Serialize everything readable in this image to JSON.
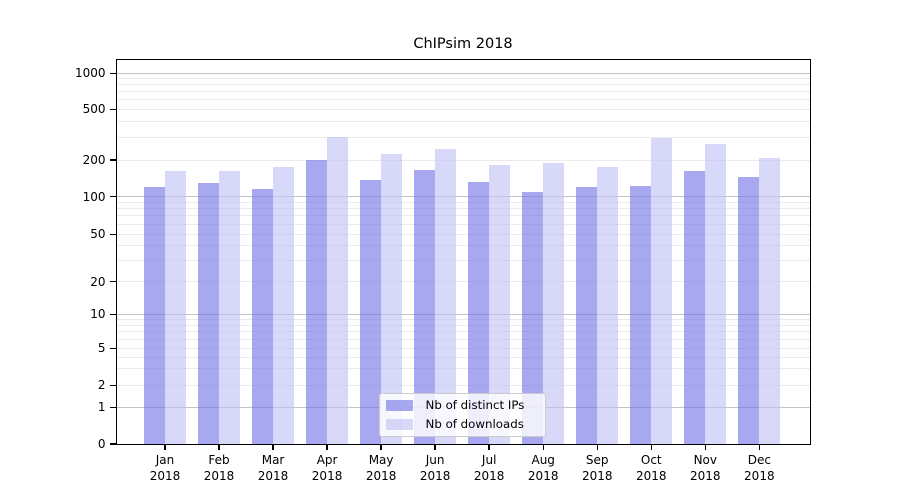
{
  "title": "ChIPsim 2018",
  "colors": {
    "ips_bar": "rgba(110,110,230,0.6)",
    "downloads_bar": "rgba(190,190,243,0.6)",
    "ips_bar_rendered_hex": "#a8a8f0",
    "downloads_bar_rendered_hex": "#d8d8f8",
    "major_grid": "#c3c3c3",
    "minor_grid": "#ebebeb"
  },
  "legend": {
    "items": [
      {
        "key": "ips",
        "label": "Nb of distinct IPs"
      },
      {
        "key": "downloads",
        "label": "Nb of downloads"
      }
    ]
  },
  "chart_data": {
    "type": "bar",
    "title": "ChIPsim 2018",
    "categories": [
      "Jan 2018",
      "Feb 2018",
      "Mar 2018",
      "Apr 2018",
      "May 2018",
      "Jun 2018",
      "Jul 2018",
      "Aug 2018",
      "Sep 2018",
      "Oct 2018",
      "Nov 2018",
      "Dec 2018"
    ],
    "x_ticks": [
      {
        "month": "Jan",
        "year": "2018"
      },
      {
        "month": "Feb",
        "year": "2018"
      },
      {
        "month": "Mar",
        "year": "2018"
      },
      {
        "month": "Apr",
        "year": "2018"
      },
      {
        "month": "May",
        "year": "2018"
      },
      {
        "month": "Jun",
        "year": "2018"
      },
      {
        "month": "Jul",
        "year": "2018"
      },
      {
        "month": "Aug",
        "year": "2018"
      },
      {
        "month": "Sep",
        "year": "2018"
      },
      {
        "month": "Oct",
        "year": "2018"
      },
      {
        "month": "Nov",
        "year": "2018"
      },
      {
        "month": "Dec",
        "year": "2018"
      }
    ],
    "series": [
      {
        "name": "Nb of distinct IPs",
        "key": "ips",
        "values": [
          120,
          130,
          115,
          200,
          138,
          165,
          132,
          110,
          119,
          123,
          164,
          145
        ]
      },
      {
        "name": "Nb of downloads",
        "key": "downloads",
        "values": [
          163,
          164,
          174,
          303,
          224,
          245,
          183,
          190,
          175,
          295,
          267,
          206
        ]
      }
    ],
    "xlabel": "",
    "ylabel": "",
    "y_axis": {
      "scale": "symlog",
      "tick_values": [
        0,
        1,
        2,
        5,
        10,
        20,
        50,
        100,
        200,
        500,
        1000
      ],
      "tick_labels": [
        "0",
        "1",
        "2",
        "5",
        "10",
        "20",
        "50",
        "100",
        "200",
        "500",
        "1000"
      ],
      "ylim": [
        0,
        1300
      ]
    },
    "grid": true,
    "legend_position": "lower center"
  }
}
